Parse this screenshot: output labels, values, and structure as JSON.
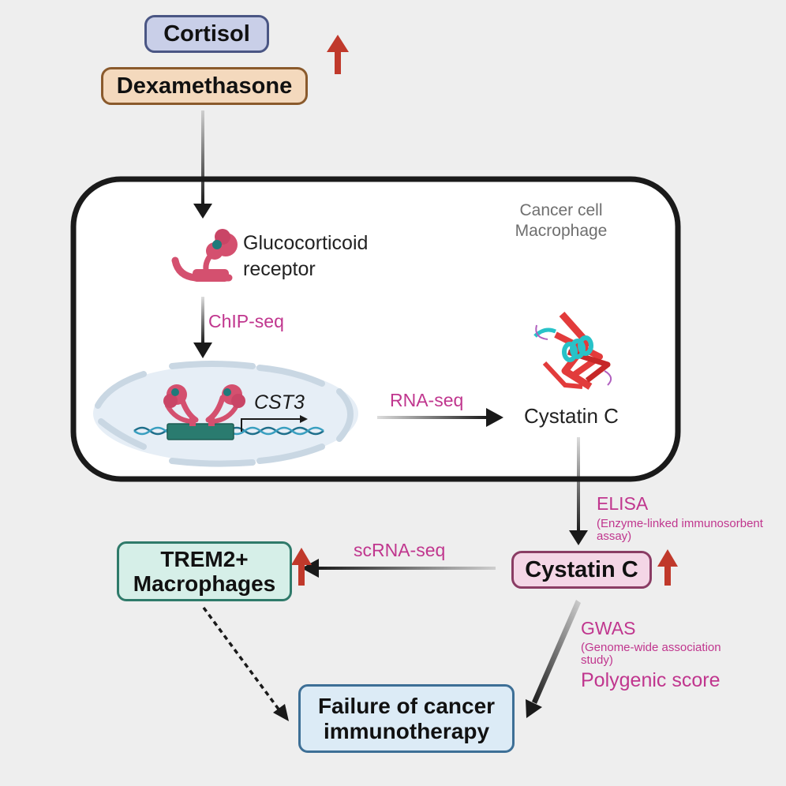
{
  "nodes": {
    "cortisol": "Cortisol",
    "dexamethasone": "Dexamethasone",
    "receptor_line1": "Glucocorticoid",
    "receptor_line2": "receptor",
    "cell_type_line1": "Cancer cell",
    "cell_type_line2": "Macrophage",
    "gene": "CST3",
    "cystatin_c_inner": "Cystatin C",
    "cystatin_c_box": "Cystatin C",
    "trem2_line1": "TREM2+",
    "trem2_line2": "Macrophages",
    "failure_line1": "Failure of cancer",
    "failure_line2": "immunotherapy"
  },
  "methods": {
    "chipseq": "ChIP-seq",
    "rnaseq": "RNA-seq",
    "elisa": "ELISA",
    "elisa_full_line1": "(Enzyme-linked immunosorbent",
    "elisa_full_line2": "assay)",
    "scrnaseq": "scRNA-seq",
    "gwas": "GWAS",
    "gwas_full_line1": "(Genome-wide association",
    "gwas_full_line2": "study)",
    "polygenic": "Polygenic score"
  },
  "colors": {
    "background": "#eeeeee",
    "cell_fill": "#ffffff",
    "cell_border": "#1a1a1a",
    "method_text": "#c0368e",
    "up_arrow": "#c0392b",
    "receptor": "#d4506f",
    "receptor_dot": "#1f7a7a",
    "dna_box": "#2a7b6f",
    "nucleus": "#c9d7e3"
  },
  "icons": [
    "up-arrow-icon",
    "glucocorticoid-receptor-icon",
    "dna-helix-icon",
    "nucleus-icon",
    "protein-structure-icon"
  ]
}
